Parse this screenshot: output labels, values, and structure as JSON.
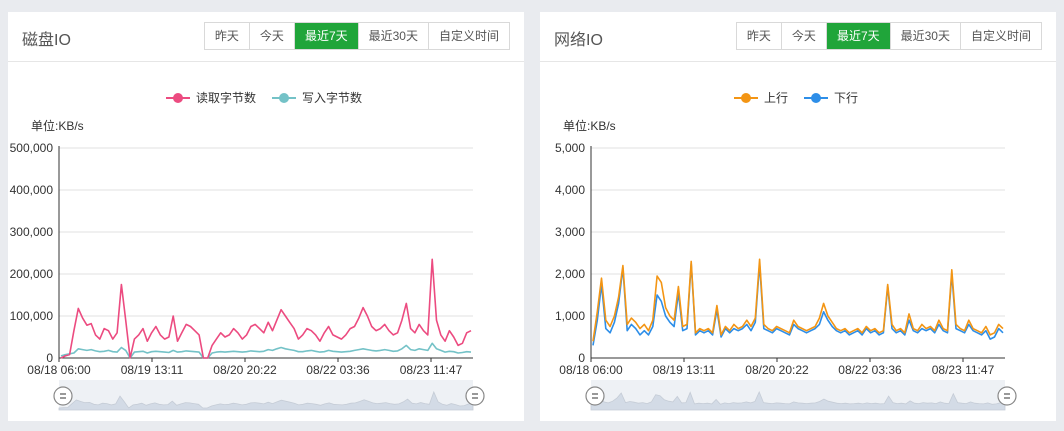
{
  "disk_panel": {
    "title": "磁盘IO",
    "tabs": [
      "昨天",
      "今天",
      "最近7天",
      "最近30天",
      "自定义时间"
    ],
    "active_tab": 2
  },
  "net_panel": {
    "title": "网络IO",
    "tabs": [
      "昨天",
      "今天",
      "最近7天",
      "最近30天",
      "自定义时间"
    ],
    "active_tab": 2
  },
  "colors": {
    "accent": "#20a53a",
    "read": "#ec4b80",
    "write": "#74c2c7",
    "up": "#f39514",
    "down": "#2d8ee8",
    "zoom_area": "#d3dbe6"
  },
  "icons": {
    "zoom_handle": "zoom-handle-icon"
  },
  "chart_data": [
    {
      "type": "line",
      "unit": "单位:KB/s",
      "ylim": [
        0,
        500000
      ],
      "yticks": [
        "0",
        "100,000",
        "200,000",
        "300,000",
        "400,000",
        "500,000"
      ],
      "xticks": [
        "08/18 06:00",
        "08/19 13:11",
        "08/20 20:22",
        "08/22 03:36",
        "08/23 11:47"
      ],
      "legend_position": "top-center",
      "grid": true,
      "has_zoom_slider": true,
      "series": [
        {
          "name": "读取字节数",
          "color": "#ec4b80",
          "values": [
            0,
            5000,
            8000,
            65000,
            118000,
            95000,
            78000,
            82000,
            55000,
            45000,
            70000,
            65000,
            45000,
            60000,
            175000,
            90000,
            0,
            45000,
            55000,
            70000,
            40000,
            60000,
            75000,
            55000,
            45000,
            50000,
            100000,
            40000,
            60000,
            80000,
            75000,
            65000,
            55000,
            0,
            0,
            30000,
            45000,
            60000,
            50000,
            55000,
            70000,
            60000,
            45000,
            55000,
            75000,
            80000,
            70000,
            60000,
            85000,
            65000,
            90000,
            115000,
            100000,
            85000,
            70000,
            45000,
            55000,
            70000,
            65000,
            55000,
            40000,
            60000,
            75000,
            55000,
            50000,
            45000,
            55000,
            70000,
            75000,
            95000,
            120000,
            100000,
            75000,
            65000,
            70000,
            80000,
            65000,
            55000,
            60000,
            90000,
            130000,
            70000,
            60000,
            80000,
            65000,
            55000,
            235000,
            90000,
            55000,
            40000,
            65000,
            50000,
            30000,
            35000,
            60000,
            65000
          ]
        },
        {
          "name": "写入字节数",
          "color": "#74c2c7",
          "values": [
            5000,
            8000,
            10000,
            12000,
            22000,
            20000,
            18000,
            20000,
            17000,
            15000,
            16000,
            18000,
            15000,
            14000,
            25000,
            18000,
            0,
            14000,
            15000,
            16000,
            12000,
            15000,
            16000,
            15000,
            14000,
            13000,
            18000,
            14000,
            15000,
            17000,
            16000,
            15000,
            14000,
            0,
            0,
            12000,
            14000,
            15000,
            14000,
            15000,
            16000,
            15000,
            14000,
            15000,
            17000,
            16000,
            15000,
            16000,
            20000,
            18000,
            22000,
            25000,
            22000,
            20000,
            18000,
            15000,
            15000,
            17000,
            18000,
            16000,
            14000,
            15000,
            18000,
            16000,
            15000,
            14000,
            15000,
            16000,
            18000,
            20000,
            22000,
            20000,
            18000,
            17000,
            18000,
            20000,
            18000,
            16000,
            17000,
            22000,
            30000,
            20000,
            18000,
            22000,
            20000,
            18000,
            35000,
            22000,
            18000,
            14000,
            16000,
            15000,
            12000,
            13000,
            15000,
            14000
          ]
        }
      ]
    },
    {
      "type": "line",
      "unit": "单位:KB/s",
      "ylim": [
        0,
        5000
      ],
      "yticks": [
        "0",
        "1,000",
        "2,000",
        "3,000",
        "4,000",
        "5,000"
      ],
      "xticks": [
        "08/18 06:00",
        "08/19 13:11",
        "08/20 20:22",
        "08/22 03:36",
        "08/23 11:47"
      ],
      "legend_position": "top-center",
      "grid": true,
      "has_zoom_slider": true,
      "series": [
        {
          "name": "上行",
          "color": "#f39514",
          "values": [
            400,
            1100,
            1900,
            900,
            750,
            1000,
            1450,
            2200,
            800,
            950,
            850,
            700,
            800,
            650,
            900,
            1950,
            1800,
            1200,
            1000,
            900,
            1700,
            750,
            800,
            2300,
            600,
            700,
            650,
            700,
            600,
            1250,
            550,
            750,
            650,
            800,
            700,
            750,
            900,
            750,
            950,
            2350,
            800,
            700,
            650,
            750,
            700,
            650,
            600,
            900,
            750,
            700,
            650,
            700,
            750,
            950,
            1300,
            1000,
            850,
            700,
            650,
            700,
            600,
            650,
            700,
            600,
            750,
            650,
            700,
            600,
            650,
            1750,
            800,
            650,
            700,
            600,
            1050,
            700,
            650,
            800,
            700,
            750,
            650,
            900,
            700,
            650,
            2100,
            800,
            700,
            650,
            900,
            700,
            650,
            600,
            750,
            550,
            600,
            800,
            700
          ]
        },
        {
          "name": "下行",
          "color": "#2d8ee8",
          "values": [
            300,
            900,
            1750,
            700,
            600,
            850,
            1300,
            2150,
            650,
            800,
            700,
            550,
            650,
            550,
            750,
            1500,
            1350,
            1000,
            850,
            750,
            1550,
            650,
            700,
            2250,
            550,
            650,
            600,
            650,
            550,
            1150,
            500,
            700,
            600,
            700,
            650,
            700,
            800,
            650,
            850,
            2250,
            700,
            650,
            600,
            700,
            650,
            600,
            550,
            800,
            700,
            650,
            600,
            650,
            700,
            800,
            1100,
            900,
            750,
            650,
            600,
            650,
            550,
            600,
            650,
            550,
            700,
            600,
            650,
            550,
            600,
            1700,
            700,
            600,
            650,
            550,
            900,
            650,
            600,
            700,
            650,
            700,
            600,
            800,
            650,
            600,
            2000,
            700,
            650,
            600,
            800,
            650,
            600,
            550,
            650,
            450,
            500,
            700,
            600
          ]
        }
      ]
    }
  ]
}
